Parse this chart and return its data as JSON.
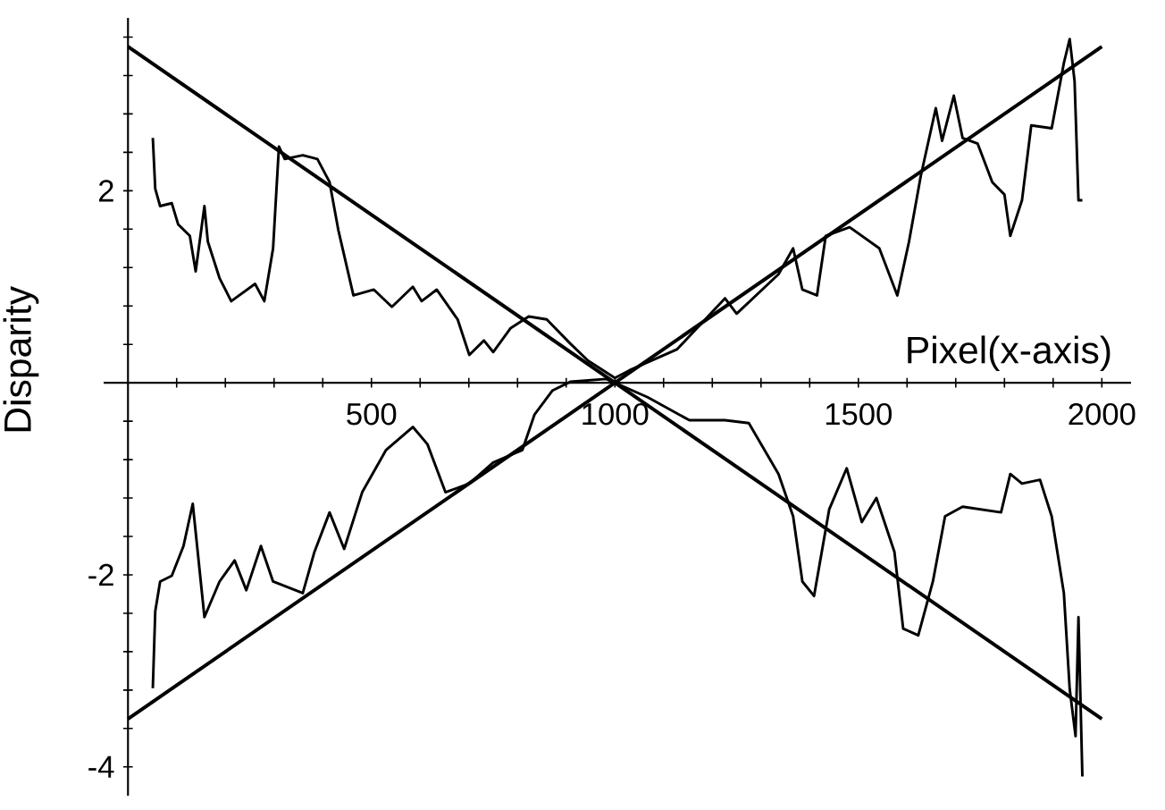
{
  "chart_data": {
    "type": "line",
    "xlabel": "Pixel(x-axis)",
    "ylabel": "Disparity",
    "xlim": [
      -50,
      2060
    ],
    "ylim": [
      -4.3,
      3.8
    ],
    "xticks": [
      {
        "value": 100,
        "label": null
      },
      {
        "value": 200,
        "label": null
      },
      {
        "value": 300,
        "label": null
      },
      {
        "value": 400,
        "label": null
      },
      500,
      {
        "value": 600,
        "label": null
      },
      {
        "value": 700,
        "label": null
      },
      {
        "value": 800,
        "label": null
      },
      {
        "value": 900,
        "label": null
      },
      1000,
      {
        "value": 1100,
        "label": null
      },
      {
        "value": 1200,
        "label": null
      },
      {
        "value": 1300,
        "label": null
      },
      {
        "value": 1400,
        "label": null
      },
      1500,
      {
        "value": 1600,
        "label": null
      },
      {
        "value": 1700,
        "label": null
      },
      {
        "value": 1800,
        "label": null
      },
      {
        "value": 1900,
        "label": null
      },
      2000
    ],
    "yticks": [
      -4,
      {
        "value": -3.6,
        "label": null
      },
      {
        "value": -3.2,
        "label": null
      },
      {
        "value": -2.8,
        "label": null
      },
      {
        "value": -2.4,
        "label": null
      },
      -2,
      {
        "value": -1.6,
        "label": null
      },
      {
        "value": -1.2,
        "label": null
      },
      {
        "value": -0.8,
        "label": null
      },
      {
        "value": -0.4,
        "label": null
      },
      {
        "value": 0.4,
        "label": null
      },
      {
        "value": 0.8,
        "label": null
      },
      {
        "value": 1.2,
        "label": null
      },
      {
        "value": 1.6,
        "label": null
      },
      2,
      {
        "value": 2.4,
        "label": null
      },
      {
        "value": 2.8,
        "label": null
      },
      {
        "value": 3.2,
        "label": null
      },
      {
        "value": 3.6,
        "label": null
      }
    ],
    "grid": false,
    "marker": "none",
    "line_style": "solid",
    "series": [
      {
        "color": "#000000",
        "x": [
          51,
          56,
          66,
          90,
          103,
          127,
          139,
          157,
          164,
          188,
          212,
          261,
          280,
          298,
          310,
          322,
          359,
          389,
          414,
          432,
          463,
          505,
          542,
          585,
          603,
          634,
          677,
          701,
          731,
          750,
          786,
          823,
          860,
          908,
          945,
          1000,
          1030,
          1128,
          1226,
          1250,
          1336,
          1366,
          1385,
          1415,
          1433,
          1482,
          1543,
          1580,
          1604,
          1628,
          1659,
          1672,
          1696,
          1714,
          1745,
          1775,
          1800,
          1812,
          1836,
          1855,
          1897,
          1922,
          1934,
          1944,
          1952,
          1960
        ],
        "values": [
          2.55,
          2.02,
          1.84,
          1.87,
          1.65,
          1.53,
          1.16,
          1.84,
          1.47,
          1.09,
          0.85,
          1.03,
          0.85,
          1.4,
          2.46,
          2.33,
          2.37,
          2.33,
          2.09,
          1.59,
          0.91,
          0.97,
          0.79,
          1.0,
          0.85,
          0.97,
          0.66,
          0.29,
          0.44,
          0.32,
          0.57,
          0.69,
          0.66,
          0.41,
          0.23,
          0.05,
          0.13,
          0.35,
          0.88,
          0.72,
          1.13,
          1.4,
          0.97,
          0.91,
          1.53,
          1.62,
          1.4,
          0.91,
          1.47,
          2.15,
          2.86,
          2.52,
          2.99,
          2.55,
          2.49,
          2.09,
          1.96,
          1.53,
          1.9,
          2.68,
          2.65,
          3.33,
          3.58,
          3.14,
          1.9,
          1.9
        ]
      },
      {
        "color": "#000000",
        "x": [
          51,
          56,
          66,
          90,
          114,
          133,
          157,
          188,
          219,
          243,
          273,
          298,
          359,
          383,
          414,
          444,
          481,
          530,
          585,
          615,
          652,
          701,
          750,
          810,
          835,
          872,
          908,
          982,
          1067,
          1153,
          1226,
          1275,
          1336,
          1366,
          1385,
          1409,
          1440,
          1476,
          1507,
          1537,
          1574,
          1592,
          1623,
          1653,
          1678,
          1714,
          1793,
          1812,
          1836,
          1873,
          1897,
          1922,
          1934,
          1946,
          1952,
          1960
        ],
        "values": [
          -3.18,
          -2.38,
          -2.07,
          -2.01,
          -1.7,
          -1.26,
          -2.44,
          -2.07,
          -1.85,
          -2.16,
          -1.7,
          -2.07,
          -2.19,
          -1.76,
          -1.35,
          -1.73,
          -1.14,
          -0.7,
          -0.46,
          -0.64,
          -1.14,
          -1.05,
          -0.83,
          -0.7,
          -0.33,
          -0.08,
          0.01,
          0.04,
          -0.15,
          -0.39,
          -0.39,
          -0.42,
          -0.95,
          -1.39,
          -2.07,
          -2.22,
          -1.32,
          -0.89,
          -1.45,
          -1.2,
          -1.76,
          -2.56,
          -2.63,
          -2.07,
          -1.39,
          -1.29,
          -1.35,
          -0.95,
          -1.05,
          -1.01,
          -1.39,
          -2.19,
          -3.19,
          -3.68,
          -2.44,
          -4.1
        ]
      },
      {
        "color": "#000000",
        "x": [
          0,
          2000
        ],
        "values": [
          3.5,
          -3.5
        ]
      },
      {
        "color": "#000000",
        "x": [
          0,
          2000
        ],
        "values": [
          -3.5,
          3.5
        ]
      }
    ]
  }
}
